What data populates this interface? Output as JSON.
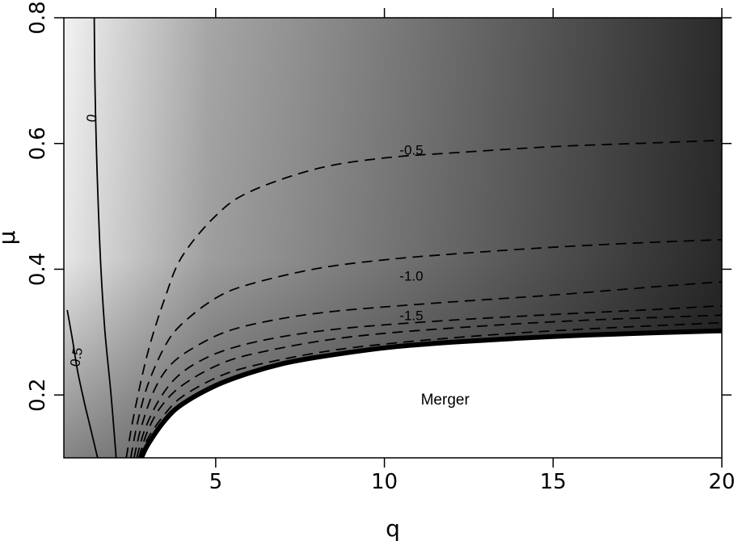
{
  "chart_data": {
    "type": "heatmap",
    "xlabel": "q",
    "ylabel": "μ",
    "xlim": [
      0.5,
      20
    ],
    "ylim": [
      0.1,
      0.8
    ],
    "x_ticks": [
      5,
      10,
      15,
      20
    ],
    "x_tick_labels": [
      "5",
      "10",
      "15",
      "20"
    ],
    "y_ticks": [
      0.2,
      0.4,
      0.6,
      0.8
    ],
    "y_tick_labels": [
      "0.2",
      "0.4",
      "0.6",
      "0.8"
    ],
    "grid": false,
    "colormap": [
      "#f2f2f2",
      "#a6a6a6",
      "#2a2a2a"
    ],
    "boundary": {
      "name": "merger-boundary",
      "color": "#000000",
      "x": [
        2.8,
        3.0,
        3.5,
        4,
        5,
        6,
        7,
        8,
        10,
        12,
        15,
        18,
        20
      ],
      "y": [
        0.1,
        0.122,
        0.16,
        0.185,
        0.215,
        0.235,
        0.25,
        0.26,
        0.275,
        0.284,
        0.293,
        0.299,
        0.302
      ]
    },
    "region_label": "Merger",
    "region_label_at": [
      11.8,
      0.185
    ],
    "contours": [
      {
        "level": "0.5",
        "style": "solid",
        "label_at": [
          0.9,
          0.26
        ],
        "x": [
          0.6,
          0.75,
          0.9,
          1.1,
          1.3,
          1.5
        ],
        "y": [
          0.335,
          0.29,
          0.24,
          0.19,
          0.145,
          0.1
        ]
      },
      {
        "level": "0",
        "style": "solid",
        "label_at": [
          1.35,
          0.64
        ],
        "x": [
          1.4,
          1.42,
          1.46,
          1.52,
          1.6,
          1.72,
          1.9,
          2.05
        ],
        "y": [
          0.8,
          0.7,
          0.6,
          0.5,
          0.4,
          0.3,
          0.2,
          0.1
        ]
      },
      {
        "level": "-0.5",
        "style": "dashed",
        "label_at": [
          10.8,
          0.588
        ],
        "x": [
          2.35,
          2.6,
          3,
          3.5,
          4,
          5,
          6,
          8,
          10,
          12,
          15,
          18,
          20
        ],
        "y": [
          0.1,
          0.175,
          0.27,
          0.355,
          0.42,
          0.485,
          0.523,
          0.56,
          0.577,
          0.585,
          0.595,
          0.601,
          0.605
        ]
      },
      {
        "level": "-1.0",
        "style": "dashed",
        "label_at": [
          10.8,
          0.388
        ],
        "x": [
          2.48,
          2.7,
          3,
          3.5,
          4,
          5,
          6,
          8,
          10,
          12,
          15,
          18,
          20
        ],
        "y": [
          0.1,
          0.16,
          0.218,
          0.278,
          0.313,
          0.354,
          0.376,
          0.401,
          0.415,
          0.424,
          0.435,
          0.443,
          0.447
        ]
      },
      {
        "level": "-1.5",
        "style": "dashed",
        "label_at": [
          10.8,
          0.325
        ],
        "x": [
          2.58,
          2.8,
          3.2,
          3.7,
          4.5,
          5.5,
          7,
          8.5,
          10,
          12,
          15,
          18,
          20
        ],
        "y": [
          0.1,
          0.15,
          0.21,
          0.25,
          0.28,
          0.304,
          0.322,
          0.333,
          0.34,
          0.348,
          0.359,
          0.372,
          0.38
        ]
      },
      {
        "level": "",
        "style": "dashed",
        "label_at": null,
        "x": [
          2.66,
          2.9,
          3.3,
          3.8,
          4.5,
          5.5,
          7,
          9,
          12,
          15,
          18,
          20
        ],
        "y": [
          0.1,
          0.145,
          0.19,
          0.226,
          0.253,
          0.275,
          0.293,
          0.307,
          0.319,
          0.328,
          0.336,
          0.342
        ]
      },
      {
        "level": "",
        "style": "dashed",
        "label_at": null,
        "x": [
          2.72,
          3.0,
          3.4,
          4,
          5,
          6,
          8,
          10,
          13,
          16,
          20
        ],
        "y": [
          0.1,
          0.145,
          0.183,
          0.215,
          0.246,
          0.264,
          0.285,
          0.298,
          0.31,
          0.319,
          0.327
        ]
      },
      {
        "level": "",
        "style": "dashed",
        "label_at": null,
        "x": [
          2.76,
          3.0,
          3.5,
          4,
          5,
          6,
          8,
          10,
          13,
          16,
          20
        ],
        "y": [
          0.1,
          0.132,
          0.17,
          0.197,
          0.227,
          0.245,
          0.267,
          0.281,
          0.295,
          0.305,
          0.315
        ]
      }
    ]
  }
}
